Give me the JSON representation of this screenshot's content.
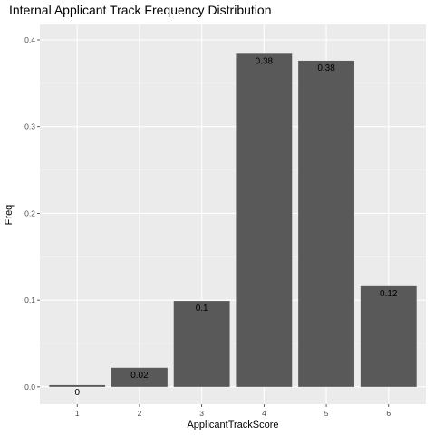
{
  "chart_data": {
    "type": "bar",
    "title": "Internal Applicant Track Frequency Distribution",
    "xlabel": "ApplicantTrackScore",
    "ylabel": "Freq",
    "categories": [
      "1",
      "2",
      "3",
      "4",
      "5",
      "6"
    ],
    "values": [
      0.002,
      0.022,
      0.099,
      0.384,
      0.376,
      0.116
    ],
    "data_labels": [
      "0",
      "0.02",
      "0.1",
      "0.38",
      "0.38",
      "0.12"
    ],
    "yticks": [
      0,
      0.1,
      0.2,
      0.3,
      0.4
    ],
    "ytick_labels": [
      "0.0",
      "0.1",
      "0.2",
      "0.3",
      "0.4"
    ],
    "ylim": [
      -0.02,
      0.4
    ],
    "grid": true,
    "legend": "none",
    "colors": {
      "bar": "#595959",
      "panel": "#ebebeb",
      "grid_major": "#ffffff",
      "grid_minor": "#f5f5f5"
    }
  }
}
